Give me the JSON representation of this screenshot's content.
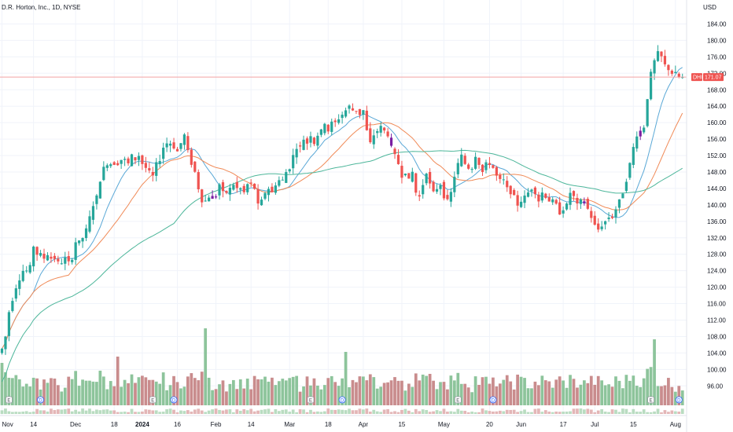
{
  "chart_data": {
    "type": "candlestick",
    "title": "D.R. Horton, Inc., 1D, NYSE",
    "currency": "USD",
    "symbol": "DHI",
    "last_price_label": "171.07",
    "last_price": 171.07,
    "ylim": [
      93,
      186
    ],
    "y_ticks": [
      "184.00",
      "180.00",
      "176.00",
      "172.00",
      "168.00",
      "164.00",
      "160.00",
      "156.00",
      "152.00",
      "148.00",
      "144.00",
      "140.00",
      "136.00",
      "132.00",
      "128.00",
      "124.00",
      "120.00",
      "116.00",
      "112.00",
      "108.00",
      "104.00",
      "100.00",
      "96.00"
    ],
    "y_tick_values": [
      184,
      180,
      176,
      172,
      168,
      164,
      160,
      156,
      152,
      148,
      144,
      140,
      136,
      132,
      128,
      124,
      120,
      116,
      112,
      108,
      104,
      100,
      96
    ],
    "x_ticks": [
      {
        "label": "Nov",
        "bar": 0
      },
      {
        "label": "14",
        "bar": 9
      },
      {
        "label": "Dec",
        "bar": 21
      },
      {
        "label": "18",
        "bar": 32
      },
      {
        "label": "2024",
        "bar": 40
      },
      {
        "label": "16",
        "bar": 50
      },
      {
        "label": "Feb",
        "bar": 61
      },
      {
        "label": "14",
        "bar": 71
      },
      {
        "label": "Mar",
        "bar": 82
      },
      {
        "label": "18",
        "bar": 93
      },
      {
        "label": "Apr",
        "bar": 103
      },
      {
        "label": "15",
        "bar": 114
      },
      {
        "label": "May",
        "bar": 126
      },
      {
        "label": "20",
        "bar": 139
      },
      {
        "label": "Jun",
        "bar": 148
      },
      {
        "label": "17",
        "bar": 160
      },
      {
        "label": "Jul",
        "bar": 169
      },
      {
        "label": "15",
        "bar": 180
      },
      {
        "label": "Aug",
        "bar": 192
      }
    ],
    "bar_count": 195,
    "price_anchors": [
      [
        0,
        105
      ],
      [
        1,
        108
      ],
      [
        2,
        114
      ],
      [
        3,
        117
      ],
      [
        4,
        120
      ],
      [
        5,
        122
      ],
      [
        6,
        124
      ],
      [
        7,
        124
      ],
      [
        8,
        125
      ],
      [
        9,
        130
      ],
      [
        10,
        128
      ],
      [
        11,
        128
      ],
      [
        12,
        127
      ],
      [
        13,
        128
      ],
      [
        14,
        127
      ],
      [
        15,
        127
      ],
      [
        16,
        126
      ],
      [
        17,
        126
      ],
      [
        18,
        127
      ],
      [
        19,
        126
      ],
      [
        20,
        127
      ],
      [
        21,
        131
      ],
      [
        22,
        131
      ],
      [
        23,
        132
      ],
      [
        24,
        134
      ],
      [
        25,
        137
      ],
      [
        26,
        140
      ],
      [
        27,
        142
      ],
      [
        28,
        146
      ],
      [
        29,
        149
      ],
      [
        30,
        150
      ],
      [
        31,
        150
      ],
      [
        32,
        150
      ],
      [
        33,
        150
      ],
      [
        34,
        151
      ],
      [
        35,
        151
      ],
      [
        36,
        150
      ],
      [
        37,
        152
      ],
      [
        38,
        151
      ],
      [
        39,
        152
      ],
      [
        40,
        150
      ],
      [
        41,
        149
      ],
      [
        42,
        148
      ],
      [
        43,
        147
      ],
      [
        44,
        150
      ],
      [
        45,
        151
      ],
      [
        46,
        154
      ],
      [
        47,
        155
      ],
      [
        48,
        155
      ],
      [
        49,
        154
      ],
      [
        50,
        153
      ],
      [
        51,
        155
      ],
      [
        52,
        157
      ],
      [
        53,
        153
      ],
      [
        54,
        150
      ],
      [
        55,
        148
      ],
      [
        56,
        144
      ],
      [
        57,
        141
      ],
      [
        58,
        141
      ],
      [
        59,
        142
      ],
      [
        60,
        142
      ],
      [
        61,
        142
      ],
      [
        62,
        145
      ],
      [
        63,
        143
      ],
      [
        64,
        143
      ],
      [
        65,
        144
      ],
      [
        66,
        145
      ],
      [
        67,
        144
      ],
      [
        68,
        144
      ],
      [
        69,
        143
      ],
      [
        70,
        145
      ],
      [
        71,
        145
      ],
      [
        72,
        144
      ],
      [
        73,
        140
      ],
      [
        74,
        141
      ],
      [
        75,
        143
      ],
      [
        76,
        144
      ],
      [
        77,
        143
      ],
      [
        78,
        145
      ],
      [
        79,
        146
      ],
      [
        80,
        146
      ],
      [
        81,
        148
      ],
      [
        82,
        149
      ],
      [
        83,
        152
      ],
      [
        84,
        154
      ],
      [
        85,
        154
      ],
      [
        86,
        156
      ],
      [
        87,
        155
      ],
      [
        88,
        157
      ],
      [
        89,
        155
      ],
      [
        90,
        157
      ],
      [
        91,
        158
      ],
      [
        92,
        160
      ],
      [
        93,
        158
      ],
      [
        94,
        160
      ],
      [
        95,
        160
      ],
      [
        96,
        161
      ],
      [
        97,
        162
      ],
      [
        98,
        163
      ],
      [
        99,
        164
      ],
      [
        100,
        163
      ],
      [
        101,
        163
      ],
      [
        102,
        162
      ],
      [
        103,
        163
      ],
      [
        104,
        158
      ],
      [
        105,
        155
      ],
      [
        106,
        157
      ],
      [
        107,
        158
      ],
      [
        108,
        159
      ],
      [
        109,
        158
      ],
      [
        110,
        157
      ],
      [
        111,
        154
      ],
      [
        112,
        152
      ],
      [
        113,
        150
      ],
      [
        114,
        147
      ],
      [
        115,
        148
      ],
      [
        116,
        146
      ],
      [
        117,
        148
      ],
      [
        118,
        143
      ],
      [
        119,
        142
      ],
      [
        120,
        145
      ],
      [
        121,
        148
      ],
      [
        122,
        145
      ],
      [
        123,
        143
      ],
      [
        124,
        144
      ],
      [
        125,
        145
      ],
      [
        126,
        142
      ],
      [
        127,
        141
      ],
      [
        128,
        143
      ],
      [
        129,
        147
      ],
      [
        130,
        150
      ],
      [
        131,
        152
      ],
      [
        132,
        150
      ],
      [
        133,
        149
      ],
      [
        134,
        149
      ],
      [
        135,
        152
      ],
      [
        136,
        150
      ],
      [
        137,
        148
      ],
      [
        138,
        150
      ],
      [
        139,
        150
      ],
      [
        140,
        149
      ],
      [
        141,
        147
      ],
      [
        142,
        146
      ],
      [
        143,
        146
      ],
      [
        144,
        144
      ],
      [
        145,
        143
      ],
      [
        146,
        142
      ],
      [
        147,
        140
      ],
      [
        148,
        141
      ],
      [
        149,
        142
      ],
      [
        150,
        143
      ],
      [
        151,
        144
      ],
      [
        152,
        143
      ],
      [
        153,
        141
      ],
      [
        154,
        143
      ],
      [
        155,
        142
      ],
      [
        156,
        141
      ],
      [
        157,
        141
      ],
      [
        158,
        140
      ],
      [
        159,
        138
      ],
      [
        160,
        139
      ],
      [
        161,
        140
      ],
      [
        162,
        143
      ],
      [
        163,
        142
      ],
      [
        164,
        140
      ],
      [
        165,
        141
      ],
      [
        166,
        141
      ],
      [
        167,
        139
      ],
      [
        168,
        137
      ],
      [
        169,
        135
      ],
      [
        170,
        134
      ],
      [
        171,
        135
      ],
      [
        172,
        136
      ],
      [
        173,
        137
      ],
      [
        174,
        137
      ],
      [
        175,
        139
      ],
      [
        176,
        141
      ],
      [
        177,
        143
      ],
      [
        178,
        146
      ],
      [
        179,
        150
      ],
      [
        180,
        154
      ],
      [
        181,
        157
      ],
      [
        182,
        158
      ],
      [
        183,
        159
      ],
      [
        184,
        166
      ],
      [
        185,
        172
      ],
      [
        186,
        175
      ],
      [
        187,
        177
      ],
      [
        188,
        176
      ],
      [
        189,
        174
      ],
      [
        190,
        173
      ],
      [
        191,
        172
      ],
      [
        192,
        172
      ],
      [
        193,
        171
      ],
      [
        194,
        171.07
      ]
    ],
    "volume_ylim": [
      0,
      100
    ],
    "overlays": [
      "sma-10",
      "sma-20",
      "sma-50"
    ],
    "event_markers": [
      {
        "type": "E",
        "bar": 2
      },
      {
        "type": "D",
        "bar": 11
      },
      {
        "type": "E",
        "bar": 43
      },
      {
        "type": "D",
        "bar": 49
      },
      {
        "type": "E",
        "bar": 88
      },
      {
        "type": "D",
        "bar": 97
      },
      {
        "type": "E",
        "bar": 130
      },
      {
        "type": "D",
        "bar": 140
      },
      {
        "type": "E",
        "bar": 185
      },
      {
        "type": "D",
        "bar": 193
      }
    ],
    "colors": {
      "up": "#26a69a",
      "down": "#ef5350",
      "up_volume": "#8dc49b",
      "down_volume": "#c98c8d",
      "purple": "#7b1fa2",
      "ma_fast": "#5aa8d6",
      "ma_mid": "#f08a57",
      "ma_slow": "#4db69a",
      "price_line": "#f3a3a5",
      "grid": "#f0f3fa",
      "price_label_bg": "#ef5350"
    }
  }
}
